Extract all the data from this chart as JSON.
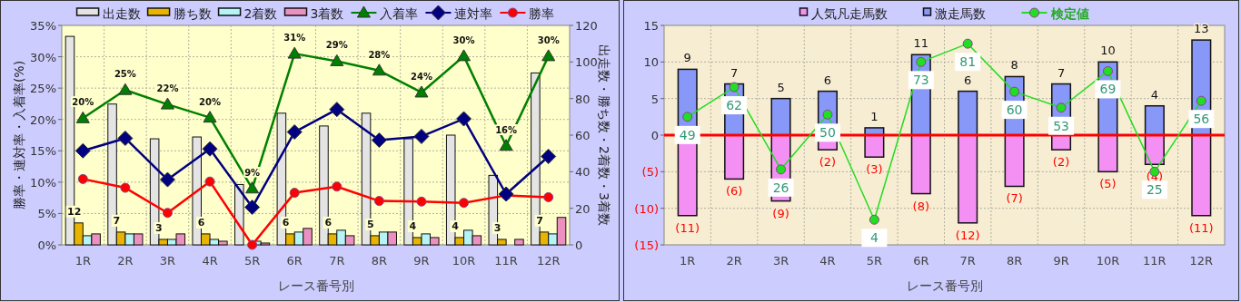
{
  "chart_data": [
    {
      "type": "bar",
      "xlabel": "レース番号別",
      "ylabel": "勝率・連対率・入着率(%)",
      "y2label": "出走数・勝ち数・2着数・3着数",
      "categories": [
        "1R",
        "2R",
        "3R",
        "4R",
        "5R",
        "6R",
        "7R",
        "8R",
        "9R",
        "10R",
        "11R",
        "12R"
      ],
      "ylim": [
        0,
        35
      ],
      "yticks": [
        {
          "value": 0,
          "label": "0%"
        },
        {
          "value": 5,
          "label": "5%"
        },
        {
          "value": 10,
          "label": "10%"
        },
        {
          "value": 15,
          "label": "15%"
        },
        {
          "value": 20,
          "label": "20%"
        },
        {
          "value": 25,
          "label": "25%"
        },
        {
          "value": 30,
          "label": "30%"
        },
        {
          "value": 35,
          "label": "35%"
        }
      ],
      "y2lim": [
        0,
        120
      ],
      "y2ticks": [
        0,
        20,
        40,
        60,
        80,
        100,
        120
      ],
      "grid": true,
      "legend": "top",
      "series": [
        {
          "name": "出走数",
          "axis": "y2",
          "color": "#e4e4e4",
          "values": [
            114,
            77,
            58,
            59,
            33,
            72,
            65,
            72,
            58,
            60,
            38,
            94
          ]
        },
        {
          "name": "勝ち数",
          "axis": "y2",
          "color": "#e8b400",
          "values": [
            12,
            7,
            3,
            6,
            0,
            6,
            6,
            5,
            4,
            4,
            3,
            7
          ],
          "value_labels": [
            "12",
            "7",
            "3",
            "6",
            null,
            "6",
            "6",
            "5",
            "4",
            "4",
            "3",
            "7"
          ]
        },
        {
          "name": "2着数",
          "axis": "y2",
          "color": "#b4f4f4",
          "values": [
            5,
            6,
            3,
            3,
            2,
            7,
            8,
            7,
            6,
            8,
            0,
            6
          ]
        },
        {
          "name": "3着数",
          "axis": "y2",
          "color": "#ec90c0",
          "values": [
            6,
            6,
            6,
            2,
            1,
            9,
            5,
            7,
            4,
            5,
            3,
            15
          ]
        },
        {
          "name": "入着率",
          "type": "line",
          "axis": "y",
          "color": "#008000",
          "marker": "triangle",
          "values": [
            20.2,
            24.7,
            22.4,
            20.3,
            9.0,
            30.5,
            29.3,
            27.8,
            24.3,
            30.1,
            15.8,
            30.1
          ],
          "value_labels": [
            "20%",
            "25%",
            "22%",
            "20%",
            "9%",
            "31%",
            "29%",
            "28%",
            "24%",
            "30%",
            "16%",
            "30%"
          ]
        },
        {
          "name": "連対率",
          "type": "line",
          "axis": "y",
          "color": "#000080",
          "marker": "diamond",
          "values": [
            15.0,
            17.0,
            10.4,
            15.3,
            6.0,
            18.0,
            21.6,
            16.7,
            17.3,
            20.1,
            8.1,
            14.1
          ]
        },
        {
          "name": "勝率",
          "type": "line",
          "axis": "y",
          "color": "#ff0000",
          "marker": "circle",
          "values": [
            10.5,
            9.1,
            5.1,
            10.1,
            0,
            8.3,
            9.3,
            7.0,
            6.9,
            6.7,
            7.9,
            7.6
          ]
        }
      ]
    },
    {
      "type": "bar",
      "stacked": true,
      "xlabel": "レース番号別",
      "categories": [
        "1R",
        "2R",
        "3R",
        "4R",
        "5R",
        "6R",
        "7R",
        "8R",
        "9R",
        "10R",
        "11R",
        "12R"
      ],
      "ylim": [
        -15,
        15
      ],
      "yticks": [
        {
          "value": -15,
          "label": "(15)"
        },
        {
          "value": -10,
          "label": "(10)"
        },
        {
          "value": -5,
          "label": "(5)"
        },
        0,
        5,
        10,
        15
      ],
      "y2lim": [
        -7,
        89
      ],
      "grid": true,
      "legend": "top",
      "ref_lines": [
        {
          "axis": "y",
          "value": 0,
          "color": "#ff0000"
        }
      ],
      "series": [
        {
          "name": "人気凡走馬数",
          "color": "#f490f4",
          "values": [
            -11,
            -6,
            -9,
            -2,
            -3,
            -8,
            -12,
            -7,
            -2,
            -5,
            -4,
            -11
          ],
          "value_labels": [
            "(11)",
            "(6)",
            "(9)",
            "(2)",
            "(3)",
            "(8)",
            "(12)",
            "(7)",
            "(2)",
            "(5)",
            "(4)",
            "(11)"
          ]
        },
        {
          "name": "激走馬数",
          "color": "#8898f8",
          "values": [
            9,
            7,
            5,
            6,
            1,
            11,
            6,
            8,
            7,
            10,
            4,
            13
          ],
          "value_labels": [
            "9",
            "7",
            "5",
            "6",
            "1",
            "11",
            "6",
            "8",
            "7",
            "10",
            "4",
            "13"
          ]
        },
        {
          "name": "検定値",
          "type": "line",
          "axis": "y2",
          "color": "#22dd22",
          "marker": "circle",
          "values": [
            49,
            62,
            26,
            50,
            4,
            73,
            81,
            60,
            53,
            69,
            25,
            56
          ],
          "value_labels": [
            "49",
            "62",
            "26",
            "50",
            "4",
            "73",
            "81",
            "60",
            "53",
            "69",
            "25",
            "56"
          ]
        }
      ]
    }
  ]
}
